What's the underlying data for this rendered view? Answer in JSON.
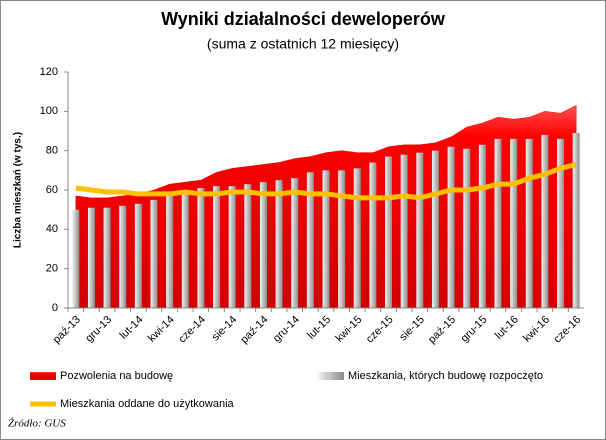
{
  "chart_data": {
    "type": "combo",
    "title": "Wyniki działalności deweloperów",
    "subtitle": "(suma z ostatnich 12 miesięcy)",
    "y_label": "Liczba mieszkań (w tys.)",
    "source": "Źródło: GUS",
    "categories": [
      "paź-13",
      null,
      "gru-13",
      null,
      "lut-14",
      null,
      "kwi-14",
      null,
      "cze-14",
      null,
      "sie-14",
      null,
      "paź-14",
      null,
      "gru-14",
      null,
      "lut-15",
      null,
      "kwi-15",
      null,
      "cze-15",
      null,
      "sie-15",
      null,
      "paź-15",
      null,
      "gru-15",
      null,
      "lut-16",
      null,
      "kwi-16",
      null,
      "cze-16"
    ],
    "series": [
      {
        "name": "Pozwolenia na budowę",
        "kind": "area",
        "color": "#ff0000",
        "values": [
          57,
          56,
          56,
          57,
          58,
          60,
          63,
          64,
          65,
          69,
          71,
          72,
          73,
          74,
          76,
          77,
          79,
          80,
          79,
          79,
          82,
          83,
          83,
          84,
          87,
          92,
          94,
          97,
          96,
          97,
          100,
          99,
          103
        ]
      },
      {
        "name": "Mieszkania, których budowę rozpoczęto",
        "kind": "bar",
        "color": "#bfbfbf",
        "values": [
          50,
          51,
          51,
          52,
          53,
          55,
          57,
          59,
          61,
          62,
          62,
          63,
          64,
          65,
          66,
          69,
          70,
          70,
          71,
          74,
          77,
          78,
          79,
          80,
          82,
          81,
          83,
          86,
          86,
          86,
          88,
          86,
          89
        ]
      },
      {
        "name": "Mieszkania oddane do użytkowania",
        "kind": "line",
        "color": "#ffc000",
        "values": [
          61,
          60,
          59,
          59,
          58,
          58,
          58,
          59,
          58,
          58,
          59,
          59,
          58,
          58,
          59,
          58,
          58,
          57,
          56,
          56,
          56,
          57,
          56,
          58,
          60,
          60,
          61,
          63,
          63,
          66,
          68,
          71,
          73
        ]
      }
    ],
    "ylim": [
      0,
      120
    ],
    "yticks": [
      0,
      20,
      40,
      60,
      80,
      100,
      120
    ],
    "grid": false
  }
}
